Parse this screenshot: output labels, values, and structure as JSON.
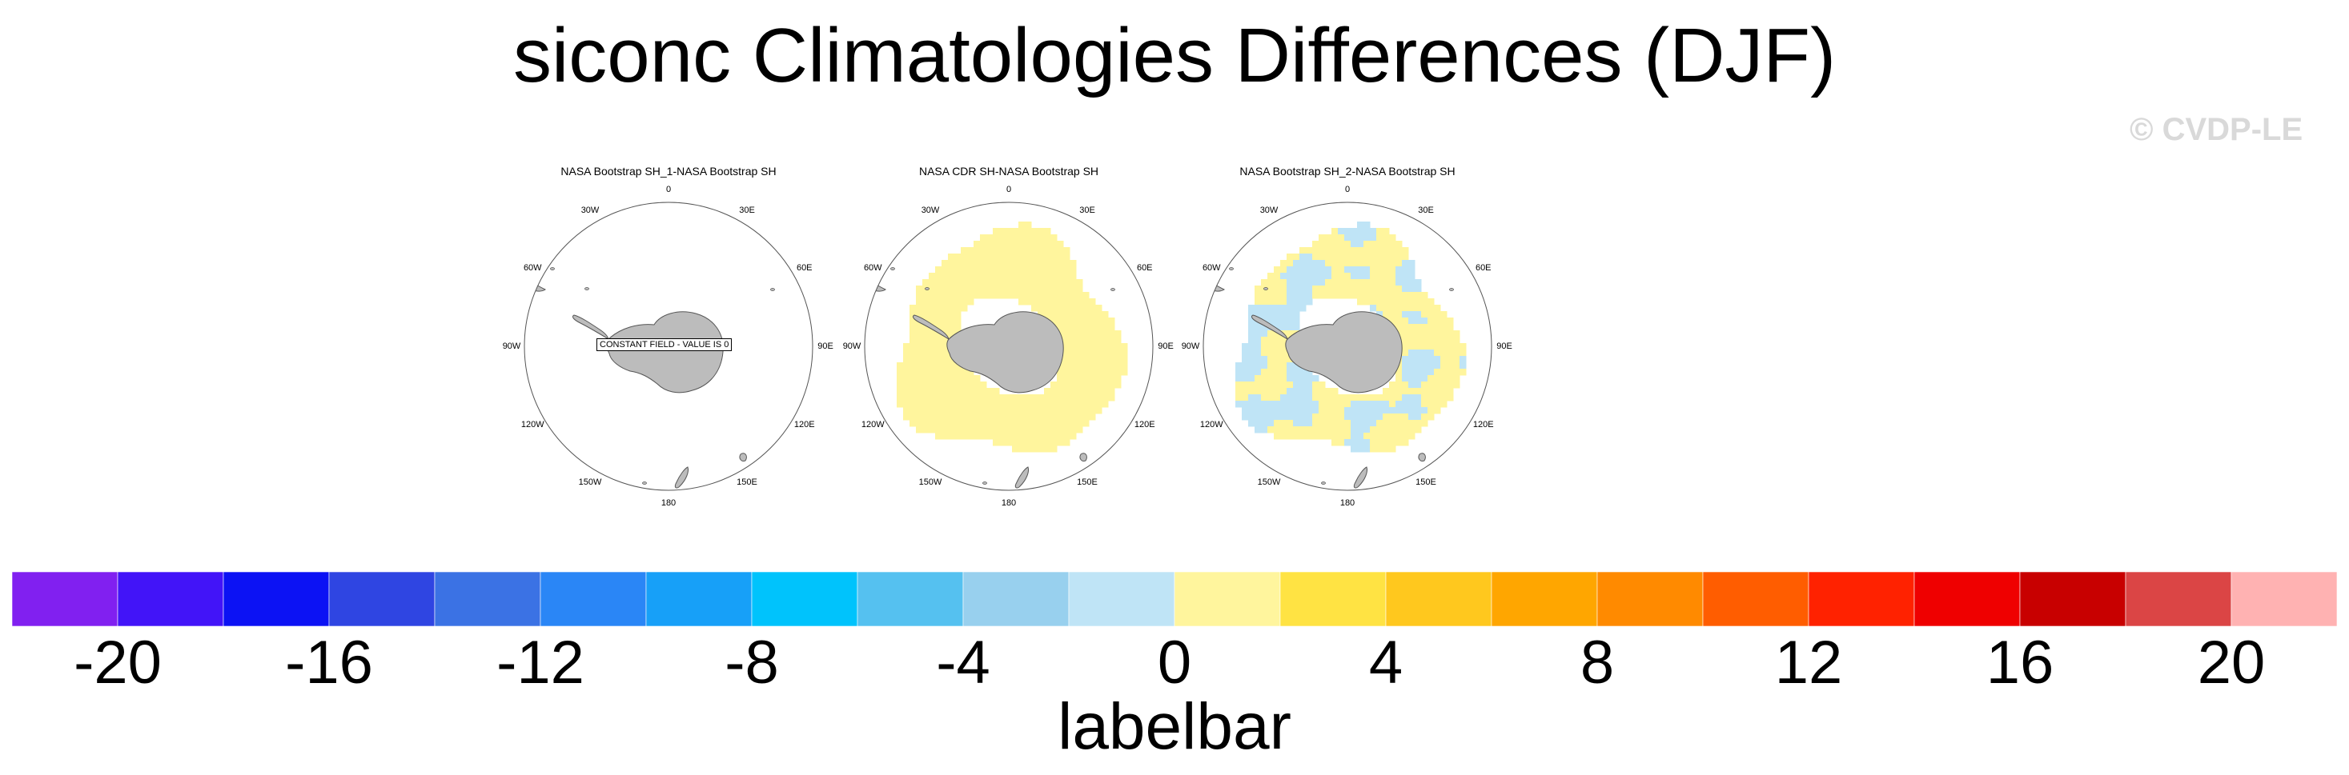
{
  "title": "siconc Climatologies Differences (DJF)",
  "watermark": "© CVDP-LE",
  "chart_data": {
    "type": "heatmap",
    "title": "siconc Climatologies Differences (DJF)",
    "panels": [
      {
        "title": "NASA Bootstrap SH_1-NASA Bootstrap SH",
        "pattern": "none",
        "annotation": "CONSTANT FIELD - VALUE IS 0"
      },
      {
        "title": "NASA CDR SH-NASA Bootstrap SH",
        "pattern": "ring-positive",
        "annotation": ""
      },
      {
        "title": "NASA Bootstrap SH_2-NASA Bootstrap SH",
        "pattern": "ring-mixed",
        "annotation": ""
      }
    ],
    "longitude_labels": [
      "0",
      "30E",
      "60E",
      "90E",
      "120E",
      "150E",
      "180",
      "150W",
      "120W",
      "90W",
      "60W",
      "30W"
    ],
    "labelbar": {
      "title": "labelbar",
      "levels": [
        -20,
        -18,
        -16,
        -14,
        -12,
        -10,
        -8,
        -6,
        -4,
        -2,
        0,
        2,
        4,
        6,
        8,
        10,
        12,
        14,
        16,
        18,
        20
      ],
      "tick_labels": [
        "-20",
        "-16",
        "-12",
        "-8",
        "-4",
        "0",
        "4",
        "8",
        "12",
        "16",
        "20"
      ],
      "colors": [
        "#8120f0",
        "#4214f8",
        "#0c12f4",
        "#2f45e2",
        "#3b72e4",
        "#2a86f6",
        "#17a0f8",
        "#00c3fc",
        "#55c1f0",
        "#98d0ee",
        "#bfe4f6",
        "#fff59d",
        "#ffe343",
        "#ffc81e",
        "#ffa600",
        "#ff8a00",
        "#ff5d00",
        "#ff2200",
        "#ef0000",
        "#c80000",
        "#db4545",
        "#ffb2b2"
      ]
    },
    "colors": {
      "land": "#bcbcbc",
      "coast": "#555555",
      "positive_small": "#fff59d",
      "negative_small": "#bfe4f6"
    }
  }
}
